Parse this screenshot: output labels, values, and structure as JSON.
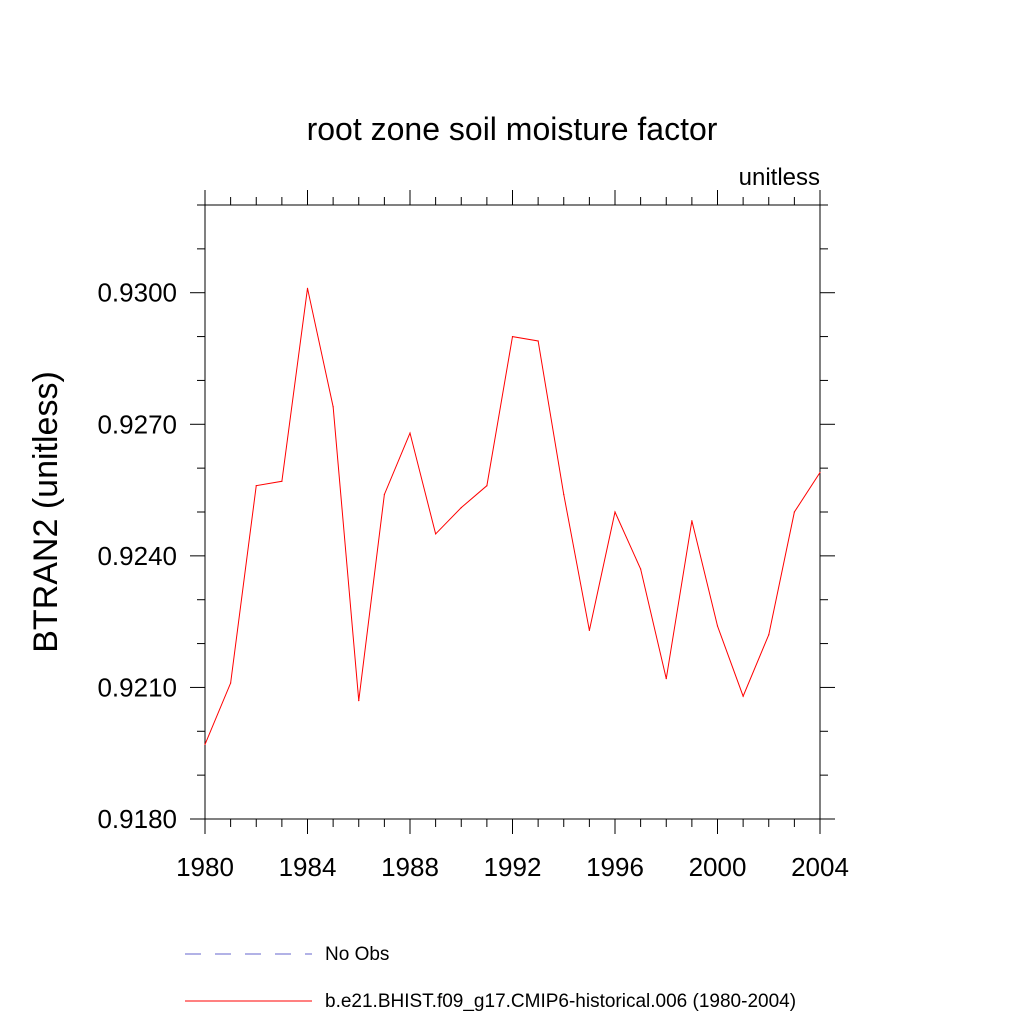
{
  "chart_data": {
    "type": "line",
    "title": "root zone soil moisture factor",
    "units_label": "unitless",
    "ylabel": "BTRAN2  (unitless)",
    "xlabel": "",
    "xlim": [
      1980,
      2004
    ],
    "ylim": [
      0.918,
      0.932
    ],
    "x_ticks": [
      1980,
      1984,
      1988,
      1992,
      1996,
      2000,
      2004
    ],
    "x_tick_labels": [
      "1980",
      "1984",
      "1988",
      "1992",
      "1996",
      "2000",
      "2004"
    ],
    "x_minor_step": 1,
    "y_ticks": [
      0.918,
      0.921,
      0.924,
      0.927,
      0.93
    ],
    "y_tick_labels": [
      "0.9180",
      "0.9210",
      "0.9240",
      "0.9270",
      "0.9300"
    ],
    "y_minor_step": 0.001,
    "series": [
      {
        "name": "b.e21.BHIST.f09_g17.CMIP6-historical.006 (1980-2004)",
        "color": "#ff0000",
        "dash": "solid",
        "x": [
          1980,
          1981,
          1982,
          1983,
          1984,
          1985,
          1986,
          1987,
          1988,
          1989,
          1990,
          1991,
          1992,
          1993,
          1994,
          1995,
          1996,
          1997,
          1998,
          1999,
          2000,
          2001,
          2002,
          2003,
          2004
        ],
        "values": [
          0.9197,
          0.9211,
          0.9256,
          0.9257,
          0.9301,
          0.9274,
          0.9207,
          0.9254,
          0.9268,
          0.9245,
          0.9251,
          0.9256,
          0.929,
          0.9289,
          0.9254,
          0.9223,
          0.925,
          0.9237,
          0.9212,
          0.9248,
          0.9224,
          0.9208,
          0.9222,
          0.925,
          0.9259
        ]
      }
    ],
    "legend": [
      {
        "label": "No Obs",
        "color": "#6666cc",
        "dash": "dashed"
      },
      {
        "label": "b.e21.BHIST.f09_g17.CMIP6-historical.006 (1980-2004)",
        "color": "#ff0000",
        "dash": "solid"
      }
    ]
  }
}
